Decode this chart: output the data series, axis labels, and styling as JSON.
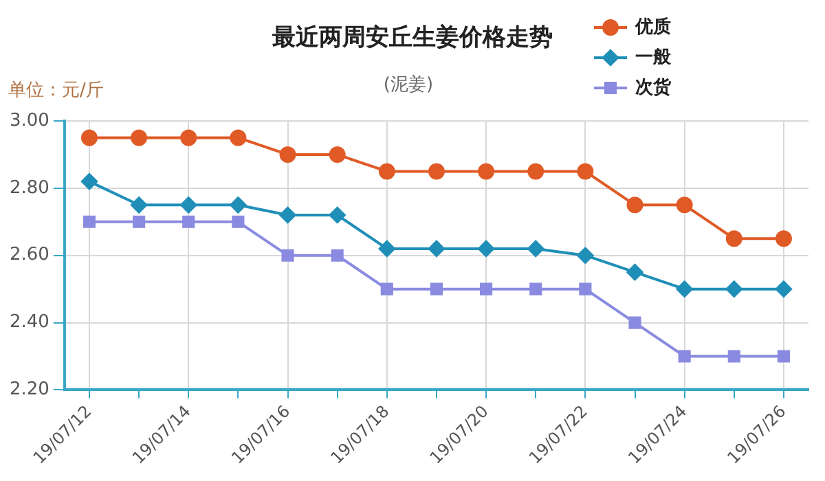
{
  "chart_data": {
    "type": "line",
    "title": "最近两周安丘生姜价格走势",
    "subtitle": "(泥姜)",
    "ylabel": "单位：元/斤",
    "categories": [
      "19/07/12",
      null,
      "19/07/14",
      null,
      "19/07/16",
      null,
      "19/07/18",
      null,
      "19/07/20",
      null,
      "19/07/22",
      null,
      "19/07/24",
      null,
      "19/07/26"
    ],
    "series": [
      {
        "name": "优质",
        "color": "#e05a26",
        "marker": "circle",
        "values": [
          2.95,
          2.95,
          2.95,
          2.95,
          2.9,
          2.9,
          2.85,
          2.85,
          2.85,
          2.85,
          2.85,
          2.75,
          2.75,
          2.65,
          2.65
        ]
      },
      {
        "name": "一般",
        "color": "#1f8fb8",
        "marker": "diamond",
        "values": [
          2.82,
          2.75,
          2.75,
          2.75,
          2.72,
          2.72,
          2.62,
          2.62,
          2.62,
          2.62,
          2.6,
          2.55,
          2.5,
          2.5,
          2.5
        ]
      },
      {
        "name": "次货",
        "color": "#8a8be0",
        "marker": "square",
        "values": [
          2.7,
          2.7,
          2.7,
          2.7,
          2.6,
          2.6,
          2.5,
          2.5,
          2.5,
          2.5,
          2.5,
          2.4,
          2.3,
          2.3,
          2.3
        ]
      }
    ],
    "ylim": [
      2.2,
      3.0
    ],
    "yticks": [
      {
        "value": 2.2,
        "label": "2.20"
      },
      {
        "value": 2.4,
        "label": "2.40"
      },
      {
        "value": 2.6,
        "label": "2.60"
      },
      {
        "value": 2.8,
        "label": "2.80"
      },
      {
        "value": 3.0,
        "label": "3.00"
      }
    ],
    "grid": true,
    "legend": "top right",
    "line_style": "solid"
  }
}
